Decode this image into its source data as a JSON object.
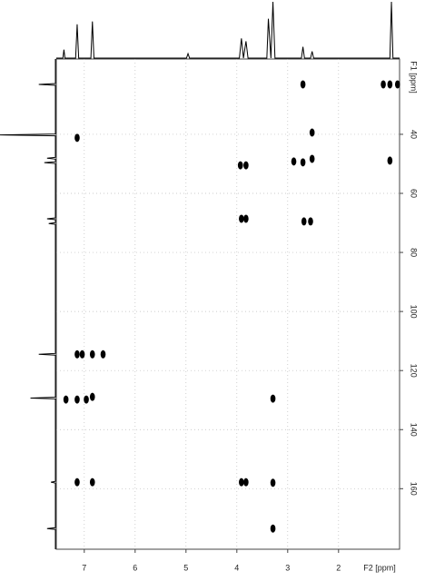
{
  "chart_data": [
    {
      "type": "line",
      "orientation": "top",
      "color": "#000000",
      "xlim": [
        7.55,
        0.8
      ],
      "ylim": [
        0,
        100
      ],
      "x": [
        7.55,
        7.42,
        7.4,
        7.38,
        7.17,
        7.14,
        7.11,
        6.87,
        6.84,
        6.81,
        4.99,
        4.96,
        4.93,
        3.95,
        3.91,
        3.87,
        3.82,
        3.78,
        3.41,
        3.38,
        3.33,
        3.29,
        3.25,
        2.73,
        2.7,
        2.67,
        2.55,
        2.52,
        2.49,
        0.99,
        0.96,
        0.93,
        0.8
      ],
      "values": [
        0,
        0,
        15,
        0,
        0,
        60,
        0,
        0,
        65,
        0,
        0,
        8,
        0,
        0,
        35,
        0,
        30,
        0,
        0,
        70,
        0,
        100,
        0,
        0,
        20,
        0,
        0,
        12,
        0,
        0,
        100,
        0,
        0
      ]
    },
    {
      "type": "line",
      "orientation": "left",
      "color": "#000000",
      "xlim": [
        14.5,
        180.5
      ],
      "ylim": [
        0,
        100
      ],
      "x": [
        14.5,
        22.8,
        23.1,
        23.4,
        39.9,
        40.2,
        40.5,
        47.8,
        48.1,
        48.4,
        49.3,
        49.6,
        49.9,
        68.3,
        68.6,
        68.9,
        69.9,
        70.2,
        70.5,
        114.2,
        114.5,
        114.8,
        129.0,
        129.3,
        129.6,
        157.5,
        157.8,
        158.1,
        173.2,
        173.5,
        173.8,
        180.5
      ],
      "values": [
        0,
        0,
        30,
        0,
        0,
        100,
        0,
        0,
        15,
        0,
        0,
        20,
        0,
        0,
        15,
        0,
        0,
        12,
        0,
        0,
        30,
        0,
        0,
        45,
        0,
        0,
        8,
        0,
        0,
        15,
        0,
        0
      ]
    },
    {
      "type": "scatter",
      "color": "#000000",
      "grid": true,
      "xlabel": "F2 [ppm]",
      "ylabel": "F1 [ppm]",
      "xlim": [
        7.55,
        0.8
      ],
      "ylim": [
        14.5,
        180.5
      ],
      "xticks": [
        7,
        6,
        5,
        4,
        3,
        2
      ],
      "yticks": [
        40,
        60,
        80,
        100,
        120,
        140,
        160
      ],
      "x": [
        2.7,
        1.12,
        0.99,
        0.84,
        7.14,
        2.52,
        0.99,
        3.93,
        3.82,
        2.88,
        2.7,
        2.52,
        3.91,
        3.82,
        2.68,
        2.55,
        7.14,
        7.04,
        6.84,
        6.63,
        7.36,
        7.14,
        6.96,
        6.84,
        3.29,
        7.14,
        6.84,
        3.91,
        3.82,
        3.29,
        3.29
      ],
      "y": [
        23.1,
        23.1,
        23.1,
        23.1,
        41.2,
        39.4,
        48.9,
        50.5,
        50.5,
        49.2,
        49.5,
        48.3,
        68.6,
        68.6,
        69.5,
        69.5,
        114.5,
        114.5,
        114.5,
        114.5,
        129.8,
        129.8,
        129.8,
        128.9,
        129.5,
        157.8,
        157.8,
        157.8,
        157.8,
        158.0,
        173.5
      ]
    }
  ]
}
